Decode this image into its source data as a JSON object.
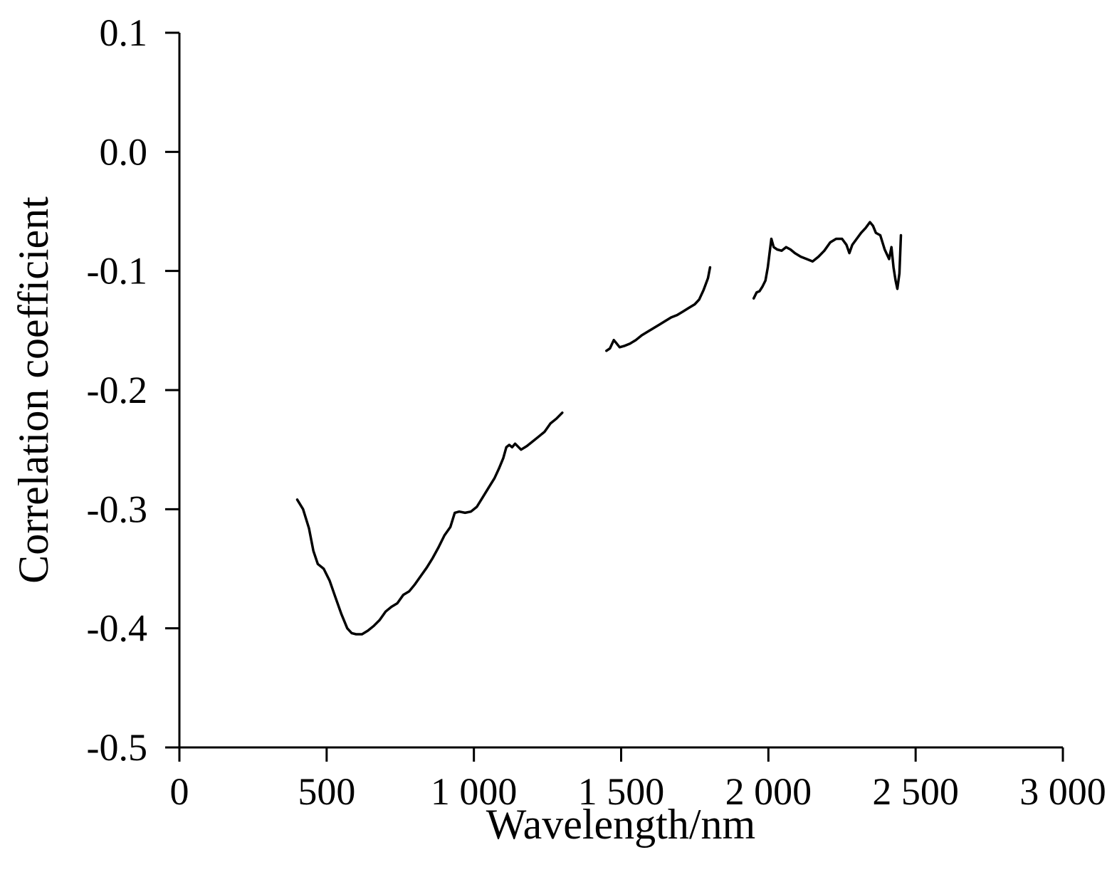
{
  "chart_data": {
    "type": "line",
    "title": "",
    "xlabel": "Wavelength/nm",
    "ylabel": "Correlation coefficient",
    "xlim": [
      0,
      3000
    ],
    "ylim": [
      -0.5,
      0.1
    ],
    "x_ticks": [
      0,
      500,
      1000,
      1500,
      2000,
      2500,
      3000
    ],
    "x_tick_labels": [
      "0",
      "500",
      "1 000",
      "1 500",
      "2 000",
      "2 500",
      "3 000"
    ],
    "y_ticks": [
      0.1,
      0.0,
      -0.1,
      -0.2,
      -0.3,
      -0.4,
      -0.5
    ],
    "y_tick_labels": [
      "0.1",
      "0.0",
      "-0.1",
      "-0.2",
      "-0.3",
      "-0.4",
      "-0.5"
    ],
    "grid": false,
    "line_color": "#000000",
    "series": [
      {
        "segments": [
          [
            [
              400,
              -0.292
            ],
            [
              420,
              -0.3
            ],
            [
              440,
              -0.316
            ],
            [
              455,
              -0.335
            ],
            [
              470,
              -0.346
            ],
            [
              490,
              -0.35
            ],
            [
              510,
              -0.36
            ],
            [
              530,
              -0.374
            ],
            [
              550,
              -0.388
            ],
            [
              570,
              -0.4
            ],
            [
              585,
              -0.404
            ],
            [
              600,
              -0.405
            ],
            [
              620,
              -0.405
            ],
            [
              640,
              -0.402
            ],
            [
              660,
              -0.398
            ],
            [
              680,
              -0.393
            ],
            [
              700,
              -0.386
            ],
            [
              720,
              -0.382
            ],
            [
              740,
              -0.379
            ],
            [
              760,
              -0.372
            ],
            [
              780,
              -0.369
            ],
            [
              800,
              -0.363
            ],
            [
              820,
              -0.356
            ],
            [
              840,
              -0.349
            ],
            [
              860,
              -0.341
            ],
            [
              880,
              -0.332
            ],
            [
              900,
              -0.322
            ],
            [
              920,
              -0.315
            ],
            [
              935,
              -0.303
            ],
            [
              950,
              -0.302
            ],
            [
              970,
              -0.303
            ],
            [
              990,
              -0.302
            ],
            [
              1010,
              -0.298
            ],
            [
              1030,
              -0.29
            ],
            [
              1050,
              -0.282
            ],
            [
              1070,
              -0.274
            ],
            [
              1085,
              -0.266
            ],
            [
              1100,
              -0.257
            ],
            [
              1110,
              -0.248
            ],
            [
              1120,
              -0.246
            ],
            [
              1130,
              -0.248
            ],
            [
              1140,
              -0.245
            ],
            [
              1160,
              -0.25
            ],
            [
              1180,
              -0.247
            ],
            [
              1200,
              -0.243
            ],
            [
              1220,
              -0.239
            ],
            [
              1240,
              -0.235
            ],
            [
              1260,
              -0.228
            ],
            [
              1280,
              -0.224
            ],
            [
              1300,
              -0.219
            ]
          ],
          [
            [
              1450,
              -0.167
            ],
            [
              1462,
              -0.165
            ],
            [
              1475,
              -0.158
            ],
            [
              1485,
              -0.161
            ],
            [
              1495,
              -0.164
            ],
            [
              1510,
              -0.163
            ],
            [
              1530,
              -0.161
            ],
            [
              1550,
              -0.158
            ],
            [
              1570,
              -0.154
            ],
            [
              1590,
              -0.151
            ],
            [
              1610,
              -0.148
            ],
            [
              1630,
              -0.145
            ],
            [
              1650,
              -0.142
            ],
            [
              1670,
              -0.139
            ],
            [
              1690,
              -0.137
            ],
            [
              1710,
              -0.134
            ],
            [
              1730,
              -0.131
            ],
            [
              1750,
              -0.128
            ],
            [
              1765,
              -0.124
            ],
            [
              1780,
              -0.116
            ],
            [
              1795,
              -0.106
            ],
            [
              1802,
              -0.097
            ]
          ],
          [
            [
              1950,
              -0.123
            ],
            [
              1960,
              -0.118
            ],
            [
              1970,
              -0.117
            ],
            [
              1980,
              -0.113
            ],
            [
              1990,
              -0.108
            ],
            [
              1998,
              -0.097
            ],
            [
              2005,
              -0.083
            ],
            [
              2010,
              -0.073
            ],
            [
              2018,
              -0.08
            ],
            [
              2030,
              -0.082
            ],
            [
              2045,
              -0.083
            ],
            [
              2060,
              -0.08
            ],
            [
              2075,
              -0.082
            ],
            [
              2090,
              -0.085
            ],
            [
              2110,
              -0.088
            ],
            [
              2130,
              -0.09
            ],
            [
              2150,
              -0.092
            ],
            [
              2170,
              -0.088
            ],
            [
              2190,
              -0.083
            ],
            [
              2210,
              -0.076
            ],
            [
              2230,
              -0.073
            ],
            [
              2250,
              -0.073
            ],
            [
              2265,
              -0.078
            ],
            [
              2275,
              -0.085
            ],
            [
              2285,
              -0.078
            ],
            [
              2300,
              -0.073
            ],
            [
              2315,
              -0.068
            ],
            [
              2330,
              -0.064
            ],
            [
              2345,
              -0.059
            ],
            [
              2355,
              -0.062
            ],
            [
              2365,
              -0.068
            ],
            [
              2380,
              -0.07
            ],
            [
              2395,
              -0.082
            ],
            [
              2410,
              -0.09
            ],
            [
              2418,
              -0.08
            ],
            [
              2425,
              -0.097
            ],
            [
              2432,
              -0.108
            ],
            [
              2438,
              -0.115
            ],
            [
              2445,
              -0.102
            ],
            [
              2450,
              -0.07
            ]
          ]
        ]
      }
    ]
  }
}
